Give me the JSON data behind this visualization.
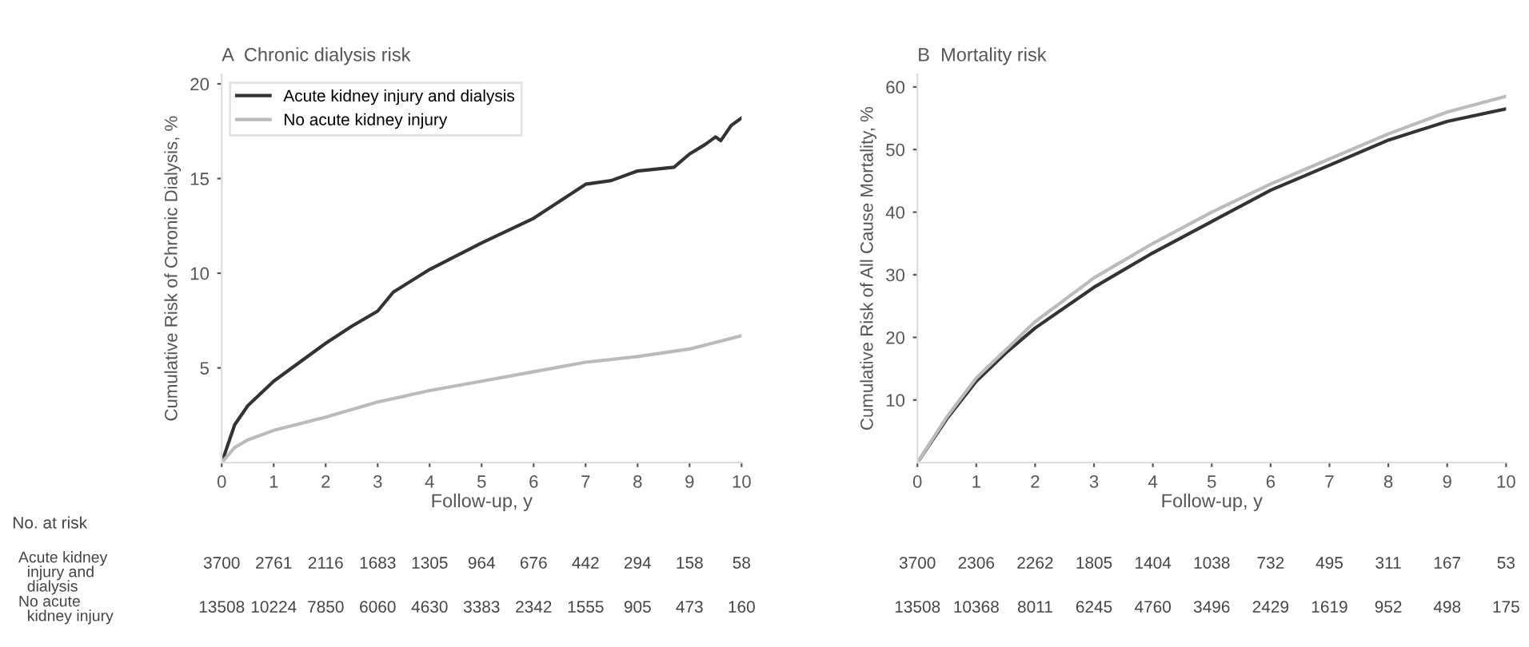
{
  "chart_data": [
    {
      "type": "line",
      "title": "A  Chronic dialysis risk",
      "xlabel": "Follow-up, y",
      "ylabel": "Cumulative Risk of Chronic Dialysis, %",
      "xlim": [
        0,
        10
      ],
      "xticks": [
        0,
        1,
        2,
        3,
        4,
        5,
        6,
        7,
        8,
        9,
        10
      ],
      "ylim": [
        0,
        20.5
      ],
      "yticks": [
        5,
        10,
        15,
        20
      ],
      "legend": "top left",
      "grid": false,
      "series": [
        {
          "name": "Acute kidney injury and dialysis",
          "color": "#333333",
          "x": [
            0,
            0.25,
            0.5,
            1,
            1.5,
            2,
            2.5,
            3,
            3.3,
            4,
            5,
            6,
            7,
            7.5,
            8,
            8.7,
            9,
            9.3,
            9.5,
            9.6,
            9.8,
            10
          ],
          "values": [
            0,
            2,
            3,
            4.3,
            5.3,
            6.3,
            7.2,
            8,
            9,
            10.2,
            11.6,
            12.9,
            14.7,
            14.9,
            15.4,
            15.6,
            16.3,
            16.8,
            17.2,
            17,
            17.8,
            18.2
          ]
        },
        {
          "name": "No acute kidney injury",
          "color": "#bbbbbb",
          "x": [
            0,
            0.25,
            0.5,
            1,
            2,
            3,
            4,
            5,
            6,
            7,
            8,
            9,
            10
          ],
          "values": [
            0,
            0.8,
            1.2,
            1.7,
            2.4,
            3.2,
            3.8,
            4.3,
            4.8,
            5.3,
            5.6,
            6,
            6.7
          ]
        }
      ],
      "annotations": [
        "No. at risk",
        "Acute kidney injury and dialysis",
        "3700 2761 2116 1683 1305 964 676 442 294 158 58",
        "No acute kidney injury",
        "13508 10224 7850 6060 4630 3383 2342 1555 905 473 160"
      ]
    },
    {
      "type": "line",
      "title": "B  Mortality risk",
      "xlabel": "Follow-up, y",
      "ylabel": "Cumulative Risk of All Cause Mortality, %",
      "xlim": [
        0,
        10
      ],
      "xticks": [
        0,
        1,
        2,
        3,
        4,
        5,
        6,
        7,
        8,
        9,
        10
      ],
      "ylim": [
        0,
        62
      ],
      "yticks": [
        10,
        20,
        30,
        40,
        50,
        60
      ],
      "grid": false,
      "series": [
        {
          "color": "#333333",
          "x": [
            0,
            0.5,
            1,
            1.5,
            2,
            3,
            4,
            5,
            6,
            7,
            8,
            9,
            10
          ],
          "values": [
            0,
            7,
            13,
            17.5,
            21.5,
            28,
            33.5,
            38.5,
            43.5,
            47.5,
            51.5,
            54.5,
            56.5
          ]
        },
        {
          "color": "#bbbbbb",
          "x": [
            0,
            0.5,
            1,
            2,
            3,
            4,
            5,
            6,
            7,
            8,
            9,
            10
          ],
          "values": [
            0,
            7.3,
            13.5,
            22.5,
            29.5,
            35,
            40,
            44.5,
            48.5,
            52.5,
            56,
            58.5
          ]
        }
      ],
      "annotations": [
        "3700 2306 2262 1805 1404 1038 732 495 311 167 53",
        "13508 10368 8011 6245 4760 3496 2429 1619 952 498 175"
      ]
    }
  ]
}
